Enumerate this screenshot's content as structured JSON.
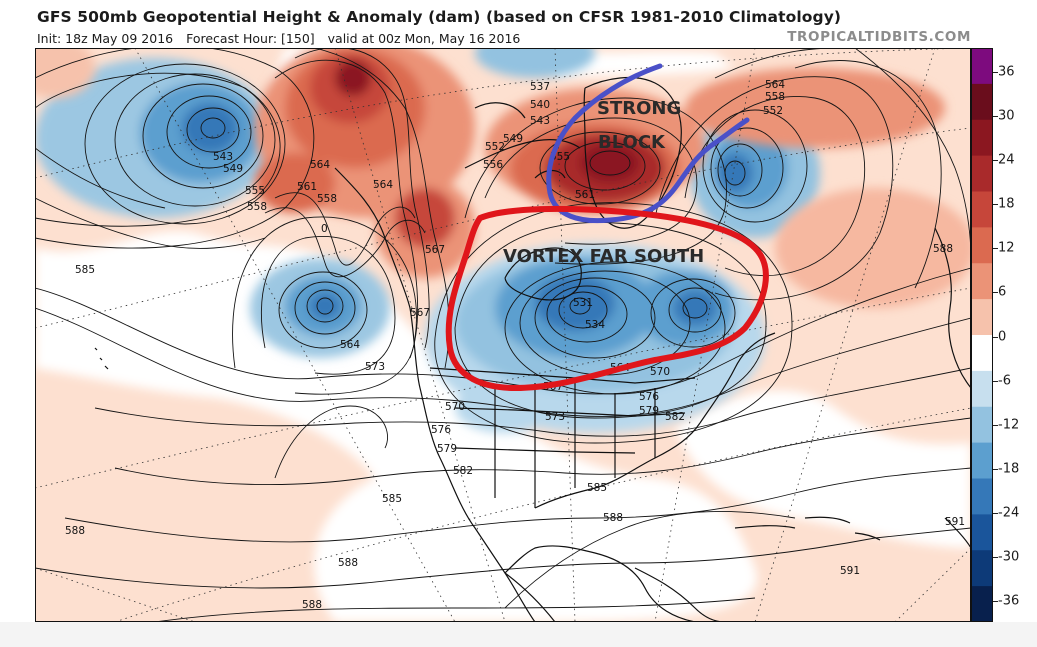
{
  "header": {
    "title": "GFS 500mb Geopotential Height & Anomaly (dam) (based on CFSR 1981-2010 Climatology)",
    "init": "Init: 18z May 09 2016",
    "forecast_hour": "Forecast Hour: [150]",
    "valid": "valid at 00z Mon, May 16 2016",
    "brand": "TROPICALTIDBITS.COM"
  },
  "annotations": {
    "block_line1": "STRONG",
    "block_line2": "BLOCK",
    "vortex": "VORTEX FAR SOUTH"
  },
  "contour_labels": [
    "537",
    "540",
    "543",
    "543",
    "549",
    "549",
    "552",
    "552",
    "555",
    "555",
    "556",
    "558",
    "558",
    "558",
    "561",
    "561",
    "564",
    "564",
    "564",
    "564",
    "564",
    "567",
    "567",
    "567",
    "570",
    "570",
    "573",
    "573",
    "576",
    "576",
    "579",
    "579",
    "582",
    "582",
    "585",
    "585",
    "585",
    "588",
    "588",
    "588",
    "588",
    "591",
    "591",
    "531",
    "534",
    "0"
  ],
  "colorbar": {
    "ticks": [
      "36",
      "30",
      "24",
      "18",
      "12",
      "6",
      "0",
      "-6",
      "-12",
      "-18",
      "-24",
      "-30",
      "-36"
    ],
    "colors": [
      "#7d0b7e",
      "#6a0d1c",
      "#8b1720",
      "#a92a2b",
      "#c6463a",
      "#db6a50",
      "#eb9377",
      "#f6c2ac",
      "#ffffff",
      "#c7dfee",
      "#93c2e0",
      "#5c9fcf",
      "#3578b8",
      "#1a559b",
      "#0d3a78",
      "#08204d"
    ]
  },
  "colors": {
    "block_outline": "#4a50c8",
    "vortex_outline": "#e0161b",
    "contour": "#151515",
    "border": "#111111"
  },
  "icons": [
    "map-canvas"
  ]
}
